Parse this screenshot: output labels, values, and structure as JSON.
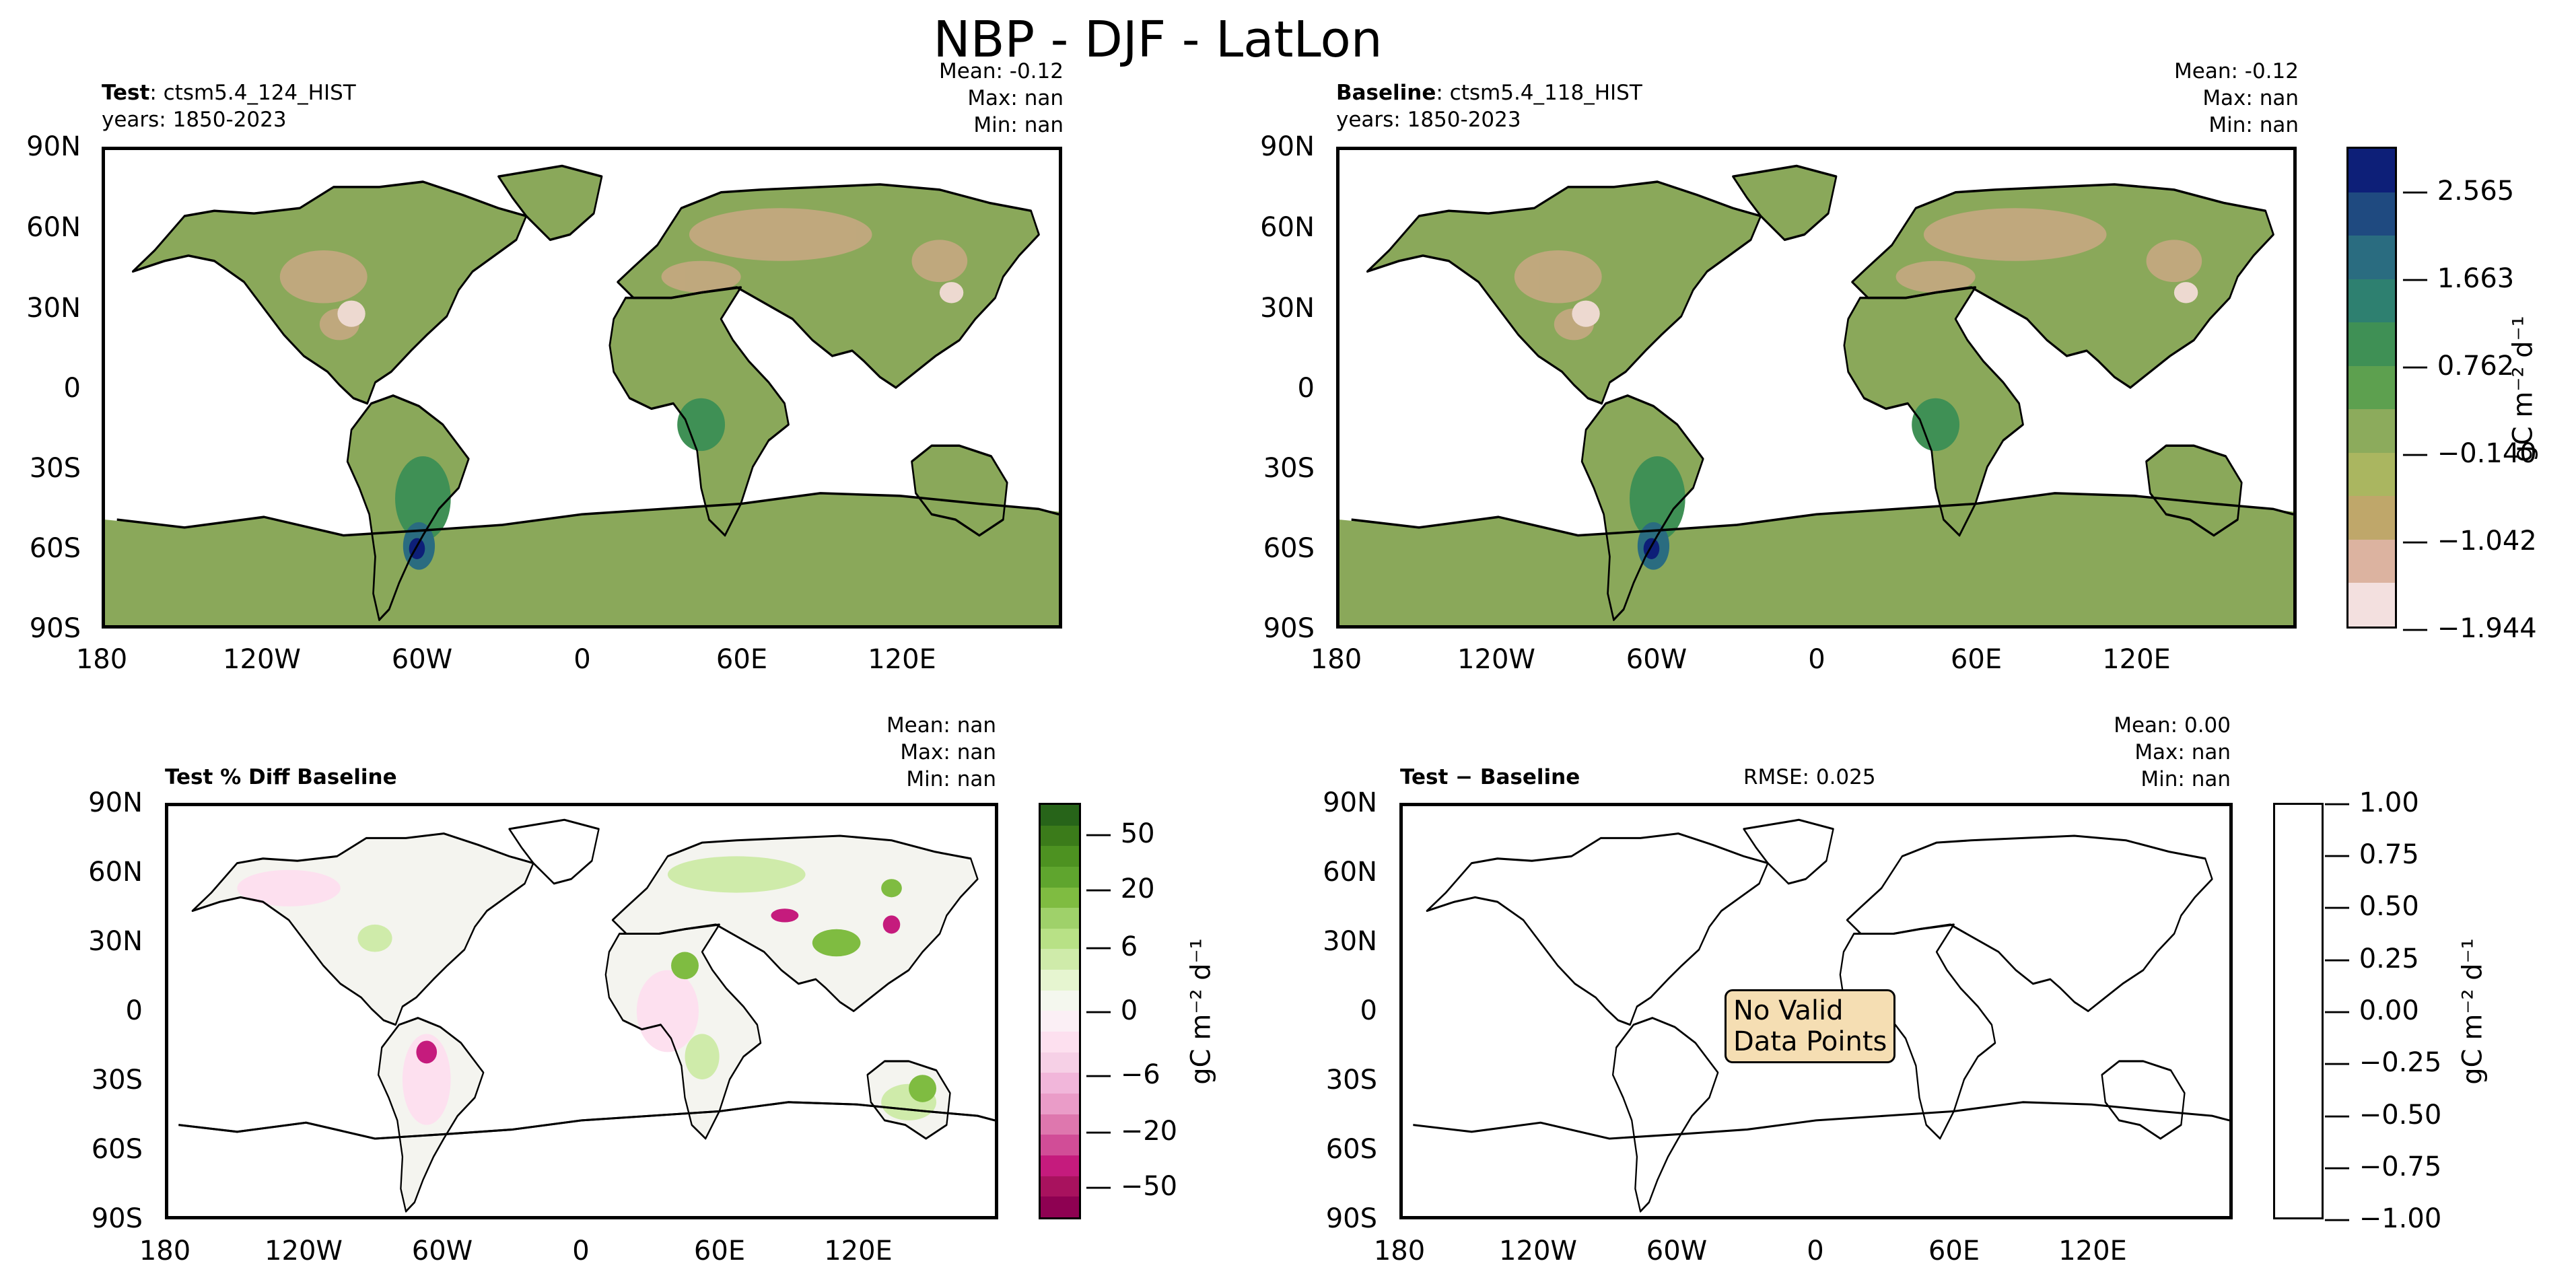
{
  "figure": {
    "title": "NBP - DJF - LatLon",
    "lat_ticks": [
      "90N",
      "60N",
      "30N",
      "0",
      "30S",
      "60S",
      "90S"
    ],
    "lon_ticks": [
      "180",
      "120W",
      "60W",
      "0",
      "60E",
      "120E"
    ],
    "unit_label": "gC m⁻² d⁻¹"
  },
  "panels": {
    "test": {
      "title_bold": "Test",
      "title_rest": ": ctsm5.4_124_HIST",
      "years": "years: 1850-2023",
      "stats": [
        "Mean: -0.12",
        "Max:   nan",
        "Min:   nan"
      ]
    },
    "baseline": {
      "title_bold": "Baseline",
      "title_rest": ": ctsm5.4_118_HIST",
      "years": "years: 1850-2023",
      "stats": [
        "Mean: -0.12",
        "Max:   nan",
        "Min:   nan"
      ]
    },
    "pctdiff": {
      "title": "Test % Diff Baseline",
      "stats": [
        "Mean:   nan",
        "Max:   nan",
        "Min:   nan"
      ]
    },
    "diff": {
      "title_bold": "Test",
      "title_rest": " − Baseline",
      "rmse": "RMSE: 0.025",
      "stats": [
        "Mean:  0.00",
        "Max:   nan",
        "Min:   nan"
      ],
      "note_line1": "No Valid",
      "note_line2": "Data Points"
    }
  },
  "colorbars": {
    "main": {
      "ticks": [
        "2.565",
        "1.663",
        "0.762",
        "−0.140",
        "−1.042",
        "−1.944"
      ],
      "colors": [
        "#f3e0df",
        "#dcb3a0",
        "#bfa76a",
        "#aab660",
        "#8cab5c",
        "#5da04f",
        "#3f9055",
        "#2e8070",
        "#2a6c80",
        "#1f4a80",
        "#0d1f78"
      ]
    },
    "pct": {
      "ticks": [
        "50",
        "20",
        "6",
        "0",
        "−6",
        "−20",
        "−50"
      ],
      "colors": [
        "#8e0152",
        "#a8125e",
        "#c51b7d",
        "#d14d97",
        "#de77ae",
        "#ea9cc8",
        "#f1b6da",
        "#f6d0e6",
        "#fde0ef",
        "#fbeff5",
        "#f4f7ee",
        "#e6f5d0",
        "#cfebaa",
        "#b8e186",
        "#9fd16a",
        "#7fbc41",
        "#5fa52e",
        "#4d9221",
        "#3b7b1a",
        "#276419"
      ]
    },
    "diff": {
      "ticks": [
        "1.00",
        "0.75",
        "0.50",
        "0.25",
        "0.00",
        "−0.25",
        "−0.50",
        "−0.75",
        "−1.00"
      ]
    }
  }
}
